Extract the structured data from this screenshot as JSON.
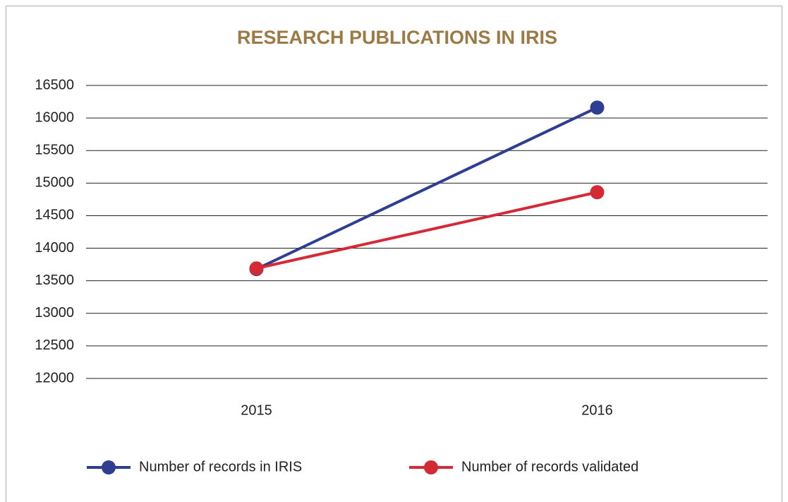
{
  "chart_data": {
    "type": "line",
    "title": "RESEARCH PUBLICATIONS IN IRIS",
    "categories": [
      "2015",
      "2016"
    ],
    "series": [
      {
        "name": "Number of records in IRIS",
        "color": "#2e3f92",
        "values": [
          13680,
          16160
        ]
      },
      {
        "name": "Number of records validated",
        "color": "#d42a36",
        "values": [
          13690,
          14860
        ]
      }
    ],
    "ylim": [
      12000,
      16500
    ],
    "yticks": [
      12000,
      12500,
      13000,
      13500,
      14000,
      14500,
      15000,
      15500,
      16000,
      16500
    ],
    "grid": true,
    "legend": "bottom"
  }
}
